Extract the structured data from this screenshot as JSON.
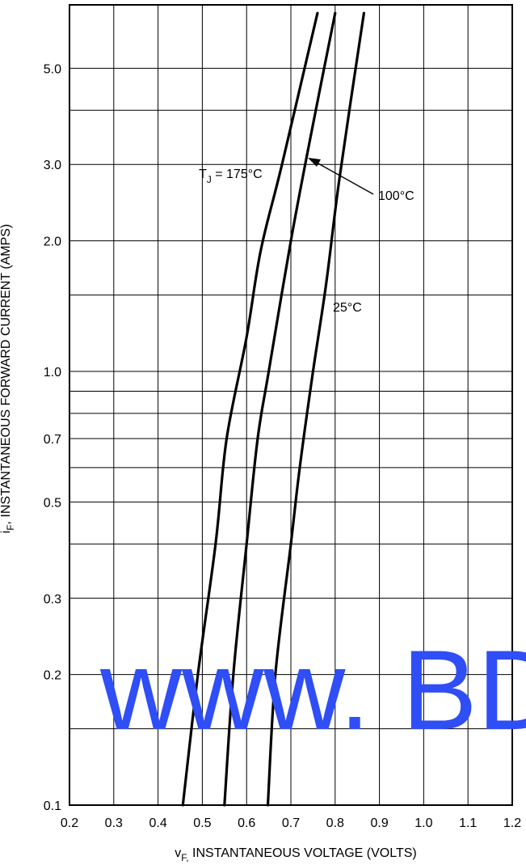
{
  "chart_data": {
    "type": "line",
    "title": "",
    "xlabel": {
      "main": "v",
      "sub": "F,",
      "rest": " INSTANTANEOUS VOLTAGE (VOLTS)"
    },
    "ylabel": {
      "main": "i",
      "sub": "F",
      "rest": ", INSTANTANEOUS FORWARD CURRENT (AMPS)"
    },
    "x_ticks": [
      "0.2",
      "0.3",
      "0.4",
      "0.5",
      "0.6",
      "0.7",
      "0.8",
      "0.9",
      "1.0",
      "1.1",
      "1.2"
    ],
    "y_tick_labels": [
      {
        "value": 5.0,
        "label": "5.0"
      },
      {
        "value": 3.0,
        "label": "3.0"
      },
      {
        "value": 2.0,
        "label": "2.0"
      },
      {
        "value": 1.0,
        "label": "1.0"
      },
      {
        "value": 0.7,
        "label": "0.7"
      },
      {
        "value": 0.5,
        "label": "0.5"
      },
      {
        "value": 0.3,
        "label": "0.3"
      },
      {
        "value": 0.2,
        "label": "0.2"
      },
      {
        "value": 0.1,
        "label": "0.1"
      }
    ],
    "y_grid": [
      0.1,
      0.15,
      0.2,
      0.3,
      0.4,
      0.5,
      0.6,
      0.7,
      0.8,
      0.9,
      1.0,
      1.5,
      2.0,
      3.0,
      4.0,
      5.0
    ],
    "xlim": [
      0.2,
      1.2
    ],
    "ylim": [
      0.1,
      7.0
    ],
    "y_scale": "log",
    "grid": true,
    "series": [
      {
        "name": "TJ = 175°C",
        "points": [
          [
            0.456,
            0.1
          ],
          [
            0.49,
            0.2
          ],
          [
            0.53,
            0.4
          ],
          [
            0.555,
            0.7
          ],
          [
            0.6,
            1.2
          ],
          [
            0.632,
            1.9
          ],
          [
            0.68,
            3.0
          ],
          [
            0.76,
            6.7
          ]
        ]
      },
      {
        "name": "100°C",
        "points": [
          [
            0.55,
            0.1
          ],
          [
            0.57,
            0.2
          ],
          [
            0.6,
            0.4
          ],
          [
            0.625,
            0.7
          ],
          [
            0.65,
            1.0
          ],
          [
            0.7,
            2.0
          ],
          [
            0.745,
            3.5
          ],
          [
            0.8,
            6.7
          ]
        ]
      },
      {
        "name": "25°C",
        "points": [
          [
            0.648,
            0.1
          ],
          [
            0.665,
            0.2
          ],
          [
            0.7,
            0.4
          ],
          [
            0.72,
            0.6
          ],
          [
            0.75,
            1.0
          ],
          [
            0.78,
            1.6
          ],
          [
            0.81,
            2.8
          ],
          [
            0.865,
            6.7
          ]
        ]
      }
    ],
    "annotations": {
      "t175": {
        "main": "T",
        "sub": "J",
        "rest": " = 175°C"
      },
      "t100": "100°C",
      "t25": "25°C"
    }
  },
  "watermark": {
    "text": "www. BDTI",
    "color": "#2f4ef5"
  },
  "colors": {
    "line": "#000000",
    "grid": "#000000"
  }
}
